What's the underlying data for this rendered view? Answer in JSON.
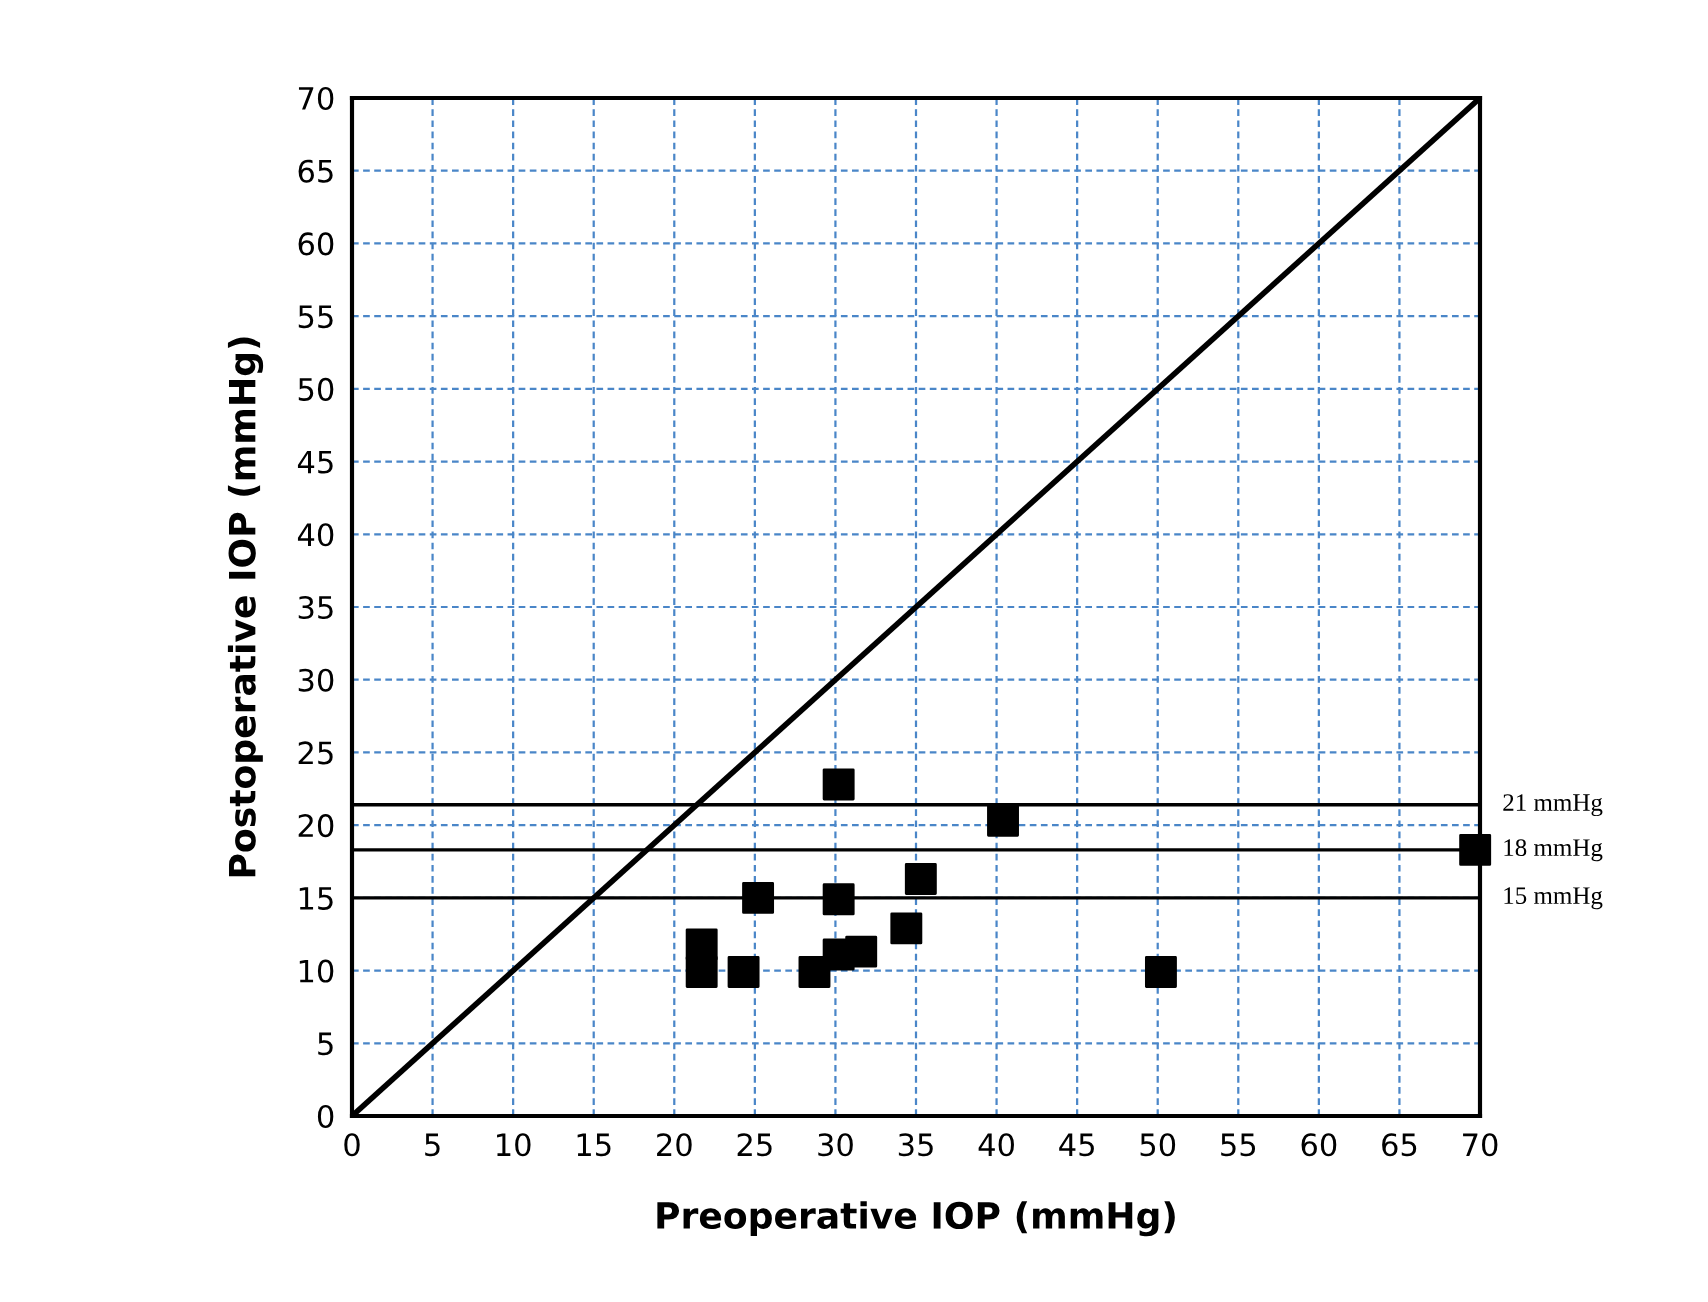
{
  "chart_data": {
    "type": "scatter",
    "xlabel": "Preoperative IOP (mmHg)",
    "ylabel": "Postoperative IOP (mmHg)",
    "x": [
      30.2,
      40.4,
      69.7,
      25.2,
      30.2,
      35.3,
      21.7,
      21.7,
      24.3,
      28.7,
      30.2,
      31.6,
      34.4,
      50.2
    ],
    "series": [
      {
        "color": "#000000",
        "marker": "square",
        "values": [
          22.8,
          20.3,
          18.3,
          15.0,
          14.9,
          16.3,
          11.8,
          9.9,
          9.9,
          9.9,
          11.1,
          11.3,
          12.9,
          9.9
        ]
      },
      {
        "type": "line",
        "color": "#000000",
        "marker": "none",
        "x": [
          0,
          70
        ],
        "values": [
          0,
          70
        ]
      }
    ],
    "xlim": [
      0,
      70
    ],
    "ylim": [
      0,
      70
    ],
    "xticks": [
      0,
      5,
      10,
      15,
      20,
      25,
      30,
      35,
      40,
      45,
      50,
      55,
      60,
      65,
      70
    ],
    "yticks": [
      0,
      5,
      10,
      15,
      20,
      25,
      30,
      35,
      40,
      45,
      50,
      55,
      60,
      65,
      70
    ],
    "grid": true,
    "ref_lines": [
      {
        "axis": "y",
        "value": 21.4,
        "label": "21 mmHg",
        "color": "#000000"
      },
      {
        "axis": "y",
        "value": 18.3,
        "label": "18 mmHg",
        "color": "#000000"
      },
      {
        "axis": "y",
        "value": 15,
        "label": "15 mmHg",
        "color": "#000000"
      }
    ]
  }
}
